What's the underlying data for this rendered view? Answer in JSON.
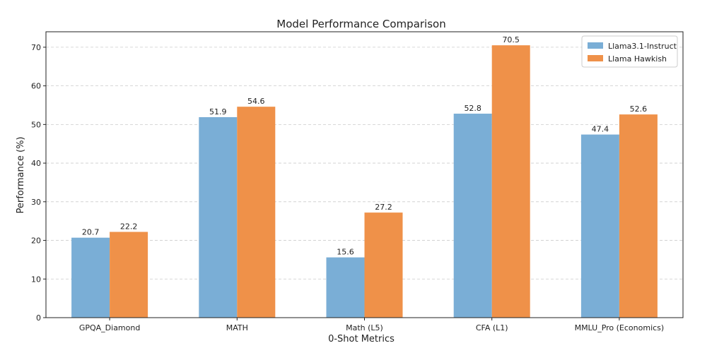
{
  "chart_data": {
    "type": "bar",
    "title": "Model Performance Comparison",
    "xlabel": "0-Shot Metrics",
    "ylabel": "Performance (%)",
    "categories": [
      "GPQA_Diamond",
      "MATH",
      "Math (L5)",
      "CFA (L1)",
      "MMLU_Pro (Economics)"
    ],
    "series": [
      {
        "name": "Llama3.1-Instruct",
        "values": [
          20.7,
          51.9,
          15.6,
          52.8,
          47.4
        ],
        "color": "#7aaed6"
      },
      {
        "name": "Llama Hawkish",
        "values": [
          22.2,
          54.6,
          27.2,
          70.5,
          52.6
        ],
        "color": "#ef9149"
      }
    ],
    "ylim": [
      0,
      74
    ],
    "yticks": [
      0,
      10,
      20,
      30,
      40,
      50,
      60,
      70
    ],
    "grid": "y-dashed",
    "legend_position": "top-right"
  }
}
